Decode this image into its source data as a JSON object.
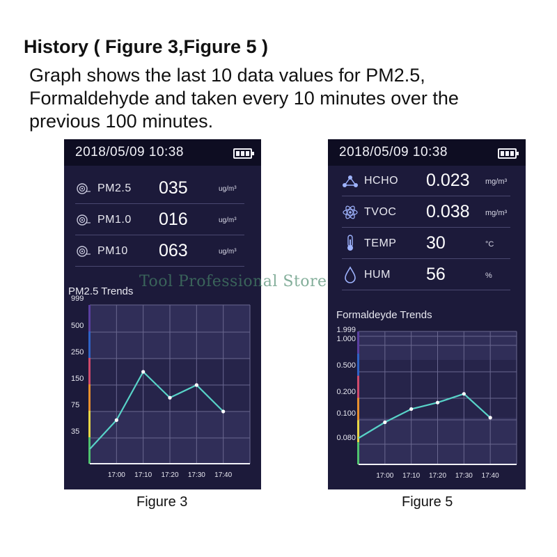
{
  "heading": "History ( Figure 3,Figure 5 )",
  "description_lines": [
    "Graph shows the last 10 data values for PM2.5,",
    "Formaldehyde and taken every 10 minutes over the",
    "previous 100 minutes."
  ],
  "watermark": "Tool Professional Store",
  "colors": {
    "screen_bg": "#1c1a3a",
    "topbar_bg": "#0e0d22",
    "trend_line": "#58d3c8",
    "scale_strip": [
      "#5a3fa0",
      "#2f62c6",
      "#d04a6c",
      "#e8902e",
      "#e8d646",
      "#4fc26e"
    ]
  },
  "figure3": {
    "caption": "Figure 3",
    "status": {
      "datetime": "2018/05/09  10:38",
      "battery_icon": "battery-full-icon"
    },
    "readings": [
      {
        "icon": "particle-sensor-icon",
        "label": "PM2.5",
        "value": "035",
        "unit": "ug/m³"
      },
      {
        "icon": "particle-sensor-icon",
        "label": "PM1.0",
        "value": "016",
        "unit": "ug/m³"
      },
      {
        "icon": "particle-sensor-icon",
        "label": "PM10",
        "value": "063",
        "unit": "ug/m³"
      }
    ]
  },
  "figure5": {
    "caption": "Figure 5",
    "status": {
      "datetime": "2018/05/09  10:38",
      "battery_icon": "battery-full-icon"
    },
    "readings": [
      {
        "icon": "molecule-icon",
        "label": "HCHO",
        "value": "0.023",
        "unit": "mg/m³"
      },
      {
        "icon": "atom-icon",
        "label": "TVOC",
        "value": "0.038",
        "unit": "mg/m³"
      },
      {
        "icon": "thermometer-icon",
        "label": "TEMP",
        "value": "30",
        "unit": "°C"
      },
      {
        "icon": "water-drop-icon",
        "label": "HUM",
        "value": "56",
        "unit": "%"
      }
    ]
  },
  "chart_data": [
    {
      "type": "line",
      "title": "PM2.5 Trends",
      "y_ticks": [
        "999",
        "500",
        "250",
        "150",
        "75",
        "35"
      ],
      "x_ticks": [
        "17:00",
        "17:10",
        "17:20",
        "17:30",
        "17:40"
      ],
      "x": [
        "16:50",
        "17:00",
        "17:10",
        "17:20",
        "17:30",
        "17:40"
      ],
      "values": [
        20,
        62,
        200,
        114,
        150,
        75
      ],
      "scale": "banded (ticks not evenly spaced in value)",
      "grid": true
    },
    {
      "type": "line",
      "title": "Formaldeyde Trends",
      "y_ticks": [
        "1.999",
        "1.000",
        "0.500",
        "0.200",
        "0.100",
        "0.080"
      ],
      "x_ticks": [
        "17:00",
        "17:10",
        "17:20",
        "17:30",
        "17:40"
      ],
      "x": [
        "16:50",
        "17:00",
        "17:10",
        "17:20",
        "17:30",
        "17:40"
      ],
      "values": [
        0.085,
        0.098,
        0.15,
        0.18,
        0.25,
        0.11
      ],
      "scale": "banded (ticks not evenly spaced in value)",
      "grid": true
    }
  ]
}
